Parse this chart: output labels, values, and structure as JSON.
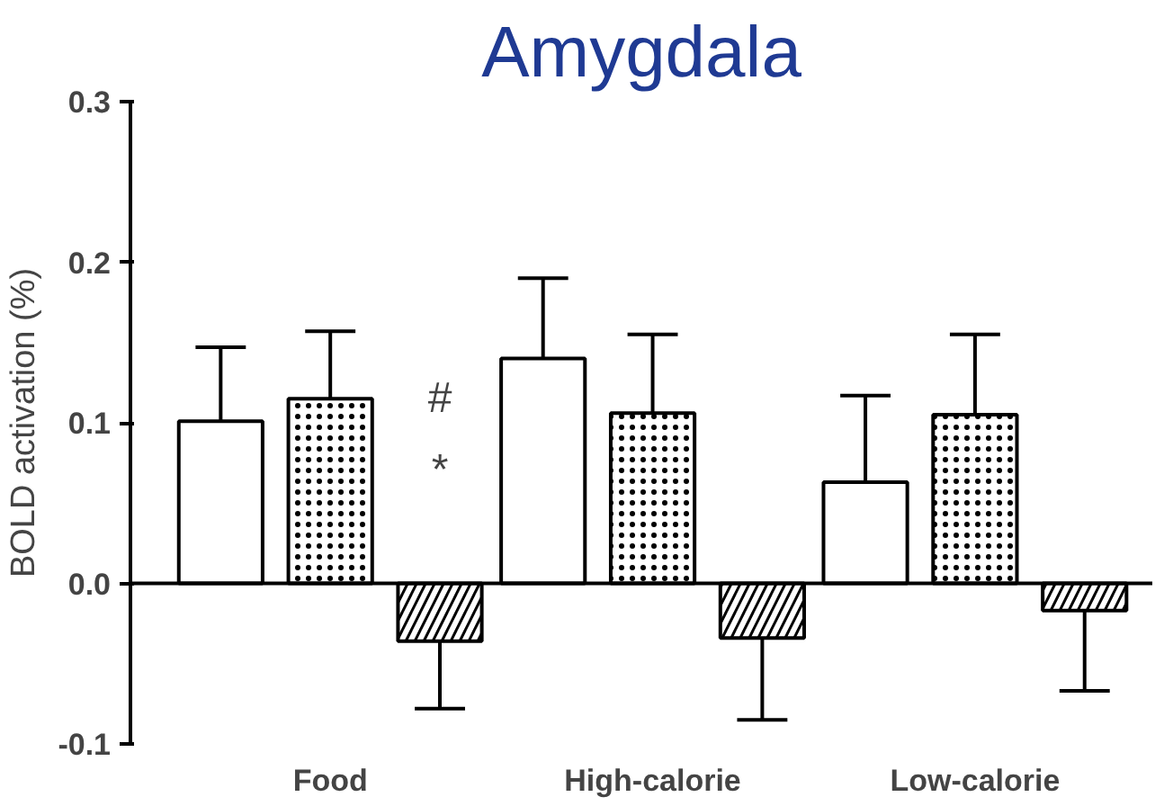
{
  "chart_data": {
    "type": "bar",
    "title": "Amygdala",
    "ylabel": "BOLD activation (%)",
    "categories": [
      "Food",
      "High-calorie",
      "Low-calorie"
    ],
    "series": [
      {
        "color": "#ffffff",
        "values": [
          0.101,
          0.14,
          0.063
        ],
        "errors": [
          [
            0.101,
            0.147
          ],
          [
            0.14,
            0.19
          ],
          [
            0.063,
            0.117
          ]
        ]
      },
      {
        "color": "#ffffff",
        "values": [
          0.115,
          0.106,
          0.105
        ],
        "errors": [
          [
            0.115,
            0.157
          ],
          [
            0.106,
            0.155
          ],
          [
            0.105,
            0.155
          ]
        ]
      },
      {
        "color": "#ffffff",
        "values": [
          -0.036,
          -0.034,
          -0.017
        ],
        "errors": [
          [
            -0.078,
            -0.036
          ],
          [
            -0.085,
            -0.034
          ],
          [
            -0.067,
            -0.017
          ]
        ]
      }
    ],
    "ylim": [
      -0.1,
      0.3
    ],
    "yticks": [
      -0.1,
      {
        "value": 0,
        "label": "0.0"
      },
      0.1,
      0.2,
      0.3
    ],
    "annotations": [
      "#",
      "*"
    ]
  }
}
